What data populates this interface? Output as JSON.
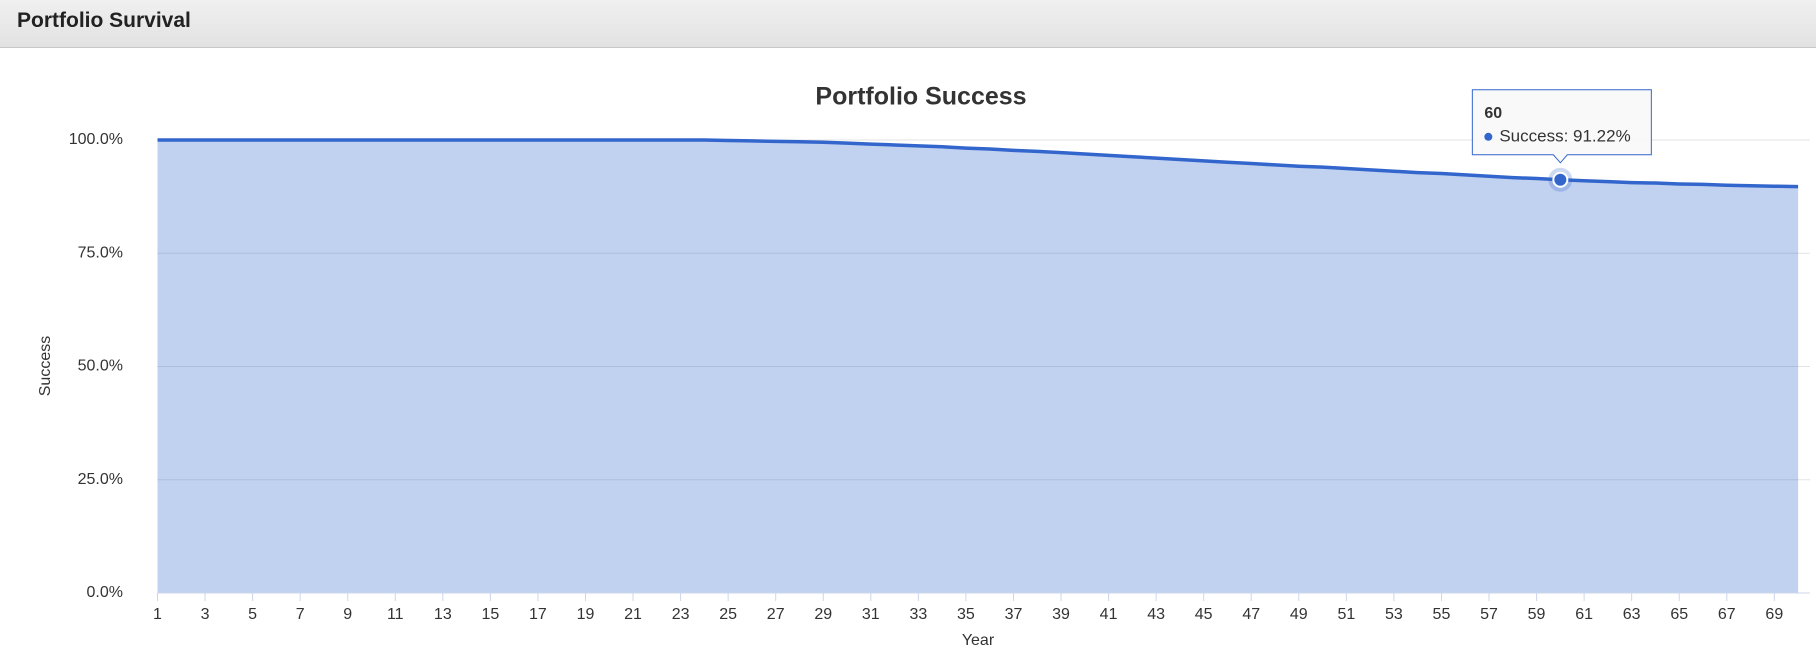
{
  "header": {
    "title": "Portfolio Survival"
  },
  "chart_data": {
    "type": "area",
    "title": "Portfolio Success",
    "x_label": "Year",
    "y_label": "Success",
    "x": [
      1,
      2,
      3,
      4,
      5,
      6,
      7,
      8,
      9,
      10,
      11,
      12,
      13,
      14,
      15,
      16,
      17,
      18,
      19,
      20,
      21,
      22,
      23,
      24,
      25,
      26,
      27,
      28,
      29,
      30,
      31,
      32,
      33,
      34,
      35,
      36,
      37,
      38,
      39,
      40,
      41,
      42,
      43,
      44,
      45,
      46,
      47,
      48,
      49,
      50,
      51,
      52,
      53,
      54,
      55,
      56,
      57,
      58,
      59,
      60,
      61,
      62,
      63,
      64,
      65,
      66,
      67,
      68,
      69,
      70
    ],
    "values": [
      100,
      100,
      100,
      100,
      100,
      100,
      100,
      100,
      100,
      100,
      100,
      100,
      100,
      100,
      100,
      100,
      100,
      100,
      100,
      100,
      100,
      100,
      100,
      100,
      99.9,
      99.8,
      99.7,
      99.6,
      99.5,
      99.3,
      99.1,
      98.9,
      98.7,
      98.5,
      98.2,
      98.0,
      97.7,
      97.5,
      97.2,
      96.9,
      96.6,
      96.3,
      96.0,
      95.7,
      95.4,
      95.1,
      94.8,
      94.5,
      94.2,
      94.0,
      93.7,
      93.4,
      93.1,
      92.8,
      92.6,
      92.3,
      92.0,
      91.7,
      91.5,
      91.22,
      91.0,
      90.8,
      90.6,
      90.5,
      90.3,
      90.2,
      90.0,
      89.9,
      89.8,
      89.7
    ],
    "color": "#3366cc",
    "xlim": [
      1,
      70.5
    ],
    "ylim": [
      0,
      100
    ],
    "xticks": [
      1,
      3,
      5,
      7,
      9,
      11,
      13,
      15,
      17,
      19,
      21,
      23,
      25,
      27,
      29,
      31,
      33,
      35,
      37,
      39,
      41,
      43,
      45,
      47,
      49,
      51,
      53,
      55,
      57,
      59,
      61,
      63,
      65,
      67,
      69
    ],
    "yticks": [
      {
        "value": 0,
        "label": "0.0%"
      },
      {
        "value": 25,
        "label": "25.0%"
      },
      {
        "value": 50,
        "label": "50.0%"
      },
      {
        "value": 75,
        "label": "75.0%"
      },
      {
        "value": 100,
        "label": "100.0%"
      }
    ],
    "grid": true,
    "tooltip": {
      "x": 60,
      "text": "Success: 91.22%"
    }
  }
}
